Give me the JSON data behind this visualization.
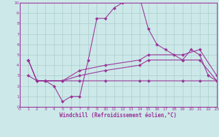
{
  "background_color": "#cce8e8",
  "grid_color": "#aacccc",
  "line_color": "#993399",
  "xlabel": "Windchill (Refroidissement éolien,°C)",
  "xlim": [
    0,
    23
  ],
  "ylim": [
    0,
    10
  ],
  "xticks": [
    0,
    1,
    2,
    3,
    4,
    5,
    6,
    7,
    8,
    9,
    10,
    11,
    12,
    13,
    14,
    15,
    16,
    17,
    18,
    19,
    20,
    21,
    22,
    23
  ],
  "yticks": [
    0,
    1,
    2,
    3,
    4,
    5,
    6,
    7,
    8,
    9,
    10
  ],
  "line1_x": [
    1,
    2,
    3,
    4,
    5,
    6,
    7,
    8,
    9,
    10,
    11,
    12,
    13,
    14,
    15,
    16,
    17,
    18,
    19,
    20,
    21,
    22,
    23
  ],
  "line1_y": [
    3.0,
    2.5,
    2.5,
    2.0,
    0.5,
    1.0,
    1.0,
    4.5,
    8.5,
    8.5,
    9.5,
    10.0,
    10.5,
    10.5,
    7.5,
    6.0,
    5.5,
    5.0,
    4.5,
    5.5,
    5.0,
    3.0,
    2.5
  ],
  "line2_x": [
    1,
    2,
    3,
    5,
    7,
    10,
    14,
    15,
    19,
    21,
    23
  ],
  "line2_y": [
    4.5,
    2.5,
    2.5,
    2.5,
    2.5,
    2.5,
    2.5,
    2.5,
    2.5,
    2.5,
    2.5
  ],
  "line3_x": [
    1,
    2,
    3,
    5,
    7,
    10,
    14,
    15,
    19,
    21,
    23
  ],
  "line3_y": [
    4.5,
    2.5,
    2.5,
    2.5,
    3.0,
    3.5,
    4.0,
    4.5,
    4.5,
    4.5,
    2.5
  ],
  "line4_x": [
    1,
    2,
    3,
    5,
    7,
    10,
    14,
    15,
    19,
    21,
    23
  ],
  "line4_y": [
    4.5,
    2.5,
    2.5,
    2.5,
    3.5,
    4.0,
    4.5,
    5.0,
    5.0,
    5.5,
    3.0
  ]
}
